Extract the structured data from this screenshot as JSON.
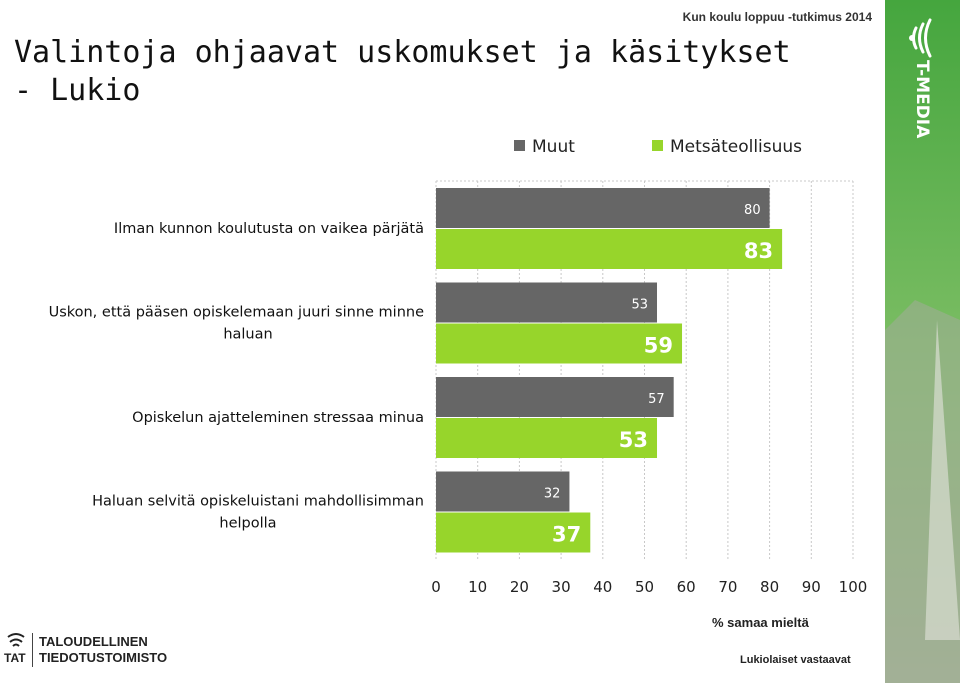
{
  "slide": {
    "title_line1": "Valintoja ohjaavat uskomukset ja käsitykset",
    "title_line2": "- Lukio",
    "survey_name": "Kun koulu loppuu -tutkimus 2014",
    "footnote": "Lukiolaiset vastaavat",
    "brand_name": "T-MEDIA",
    "org_abbrev": "TAT",
    "org_line1": "TALOUDELLINEN",
    "org_line2": "TIEDOTUSTOIMISTO"
  },
  "colors": {
    "muut": "#666666",
    "metsateollisuus": "#97d52b",
    "brand_green": "#8cc63f"
  },
  "chart_data": {
    "type": "bar",
    "orientation": "horizontal",
    "categories": [
      [
        "Ilman kunnon koulutusta on vaikea pärjätä"
      ],
      [
        "Uskon, että pääsen opiskelemaan juuri sinne minne",
        "haluan"
      ],
      [
        "Opiskelun ajatteleminen stressaa minua"
      ],
      [
        "Haluan selvitä opiskeluistani mahdollisimman",
        "helpolla"
      ]
    ],
    "series": [
      {
        "name": "Muut",
        "values": [
          80,
          53,
          57,
          32
        ]
      },
      {
        "name": "Metsäteollisuus",
        "values": [
          83,
          59,
          53,
          37
        ]
      }
    ],
    "xlabel": "% samaa mieltä",
    "xlim": [
      0,
      100
    ],
    "xticks": [
      "0",
      "10",
      "20",
      "30",
      "40",
      "50",
      "60",
      "70",
      "80",
      "90",
      "100"
    ],
    "grid": "vertical dashed",
    "legend_position": "top"
  }
}
